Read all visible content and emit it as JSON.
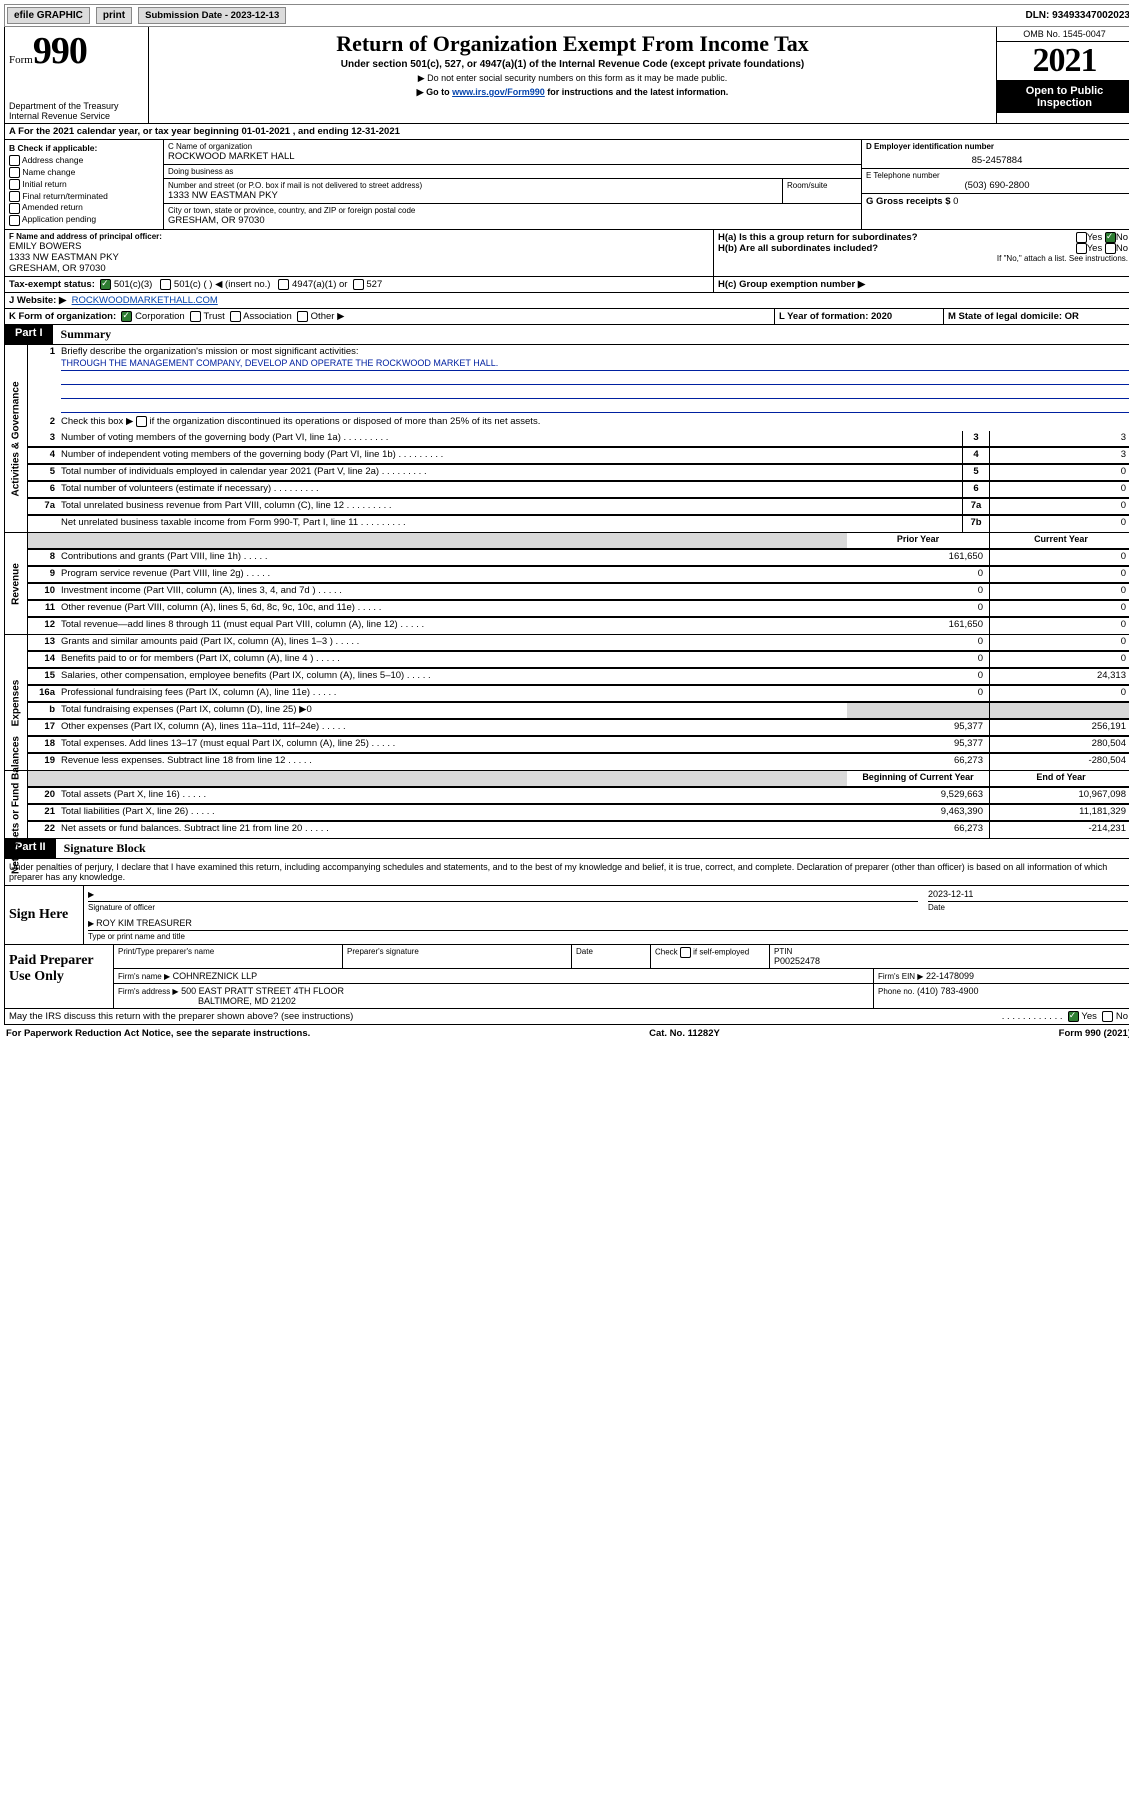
{
  "topbar": {
    "efile": "efile GRAPHIC",
    "print": "print",
    "subdate_label": "Submission Date - 2023-12-13",
    "dln": "DLN: 93493347002023"
  },
  "header": {
    "form_word": "Form",
    "form_num": "990",
    "title": "Return of Organization Exempt From Income Tax",
    "sub": "Under section 501(c), 527, or 4947(a)(1) of the Internal Revenue Code (except private foundations)",
    "note1": "▶ Do not enter social security numbers on this form as it may be made public.",
    "note2_pre": "▶ Go to ",
    "note2_link": "www.irs.gov/Form990",
    "note2_post": " for instructions and the latest information.",
    "dept": "Department of the Treasury",
    "irs": "Internal Revenue Service",
    "omb": "OMB No. 1545-0047",
    "year": "2021",
    "openpub": "Open to Public Inspection"
  },
  "A": {
    "text": "A For the 2021 calendar year, or tax year beginning 01-01-2021   , and ending 12-31-2021"
  },
  "B": {
    "label": "B Check if applicable:",
    "items": [
      "Address change",
      "Name change",
      "Initial return",
      "Final return/terminated",
      "Amended return",
      "Application pending"
    ]
  },
  "C": {
    "name_label": "C Name of organization",
    "name": "ROCKWOOD MARKET HALL",
    "dba_label": "Doing business as",
    "dba": "",
    "addr_label": "Number and street (or P.O. box if mail is not delivered to street address)",
    "room_label": "Room/suite",
    "addr": "1333 NW EASTMAN PKY",
    "city_label": "City or town, state or province, country, and ZIP or foreign postal code",
    "city": "GRESHAM, OR  97030"
  },
  "D": {
    "label": "D Employer identification number",
    "value": "85-2457884"
  },
  "E": {
    "label": "E Telephone number",
    "value": "(503) 690-2800"
  },
  "G": {
    "label": "G Gross receipts $",
    "value": "0"
  },
  "F": {
    "label": "F Name and address of principal officer:",
    "name": "EMILY BOWERS",
    "addr": "1333 NW EASTMAN PKY",
    "city": "GRESHAM, OR  97030"
  },
  "H": {
    "a_label": "H(a)  Is this a group return for subordinates?",
    "a_yes": "Yes",
    "a_no": "No",
    "b_label": "H(b)  Are all subordinates included?",
    "b_note": "If \"No,\" attach a list. See instructions.",
    "c_label": "H(c)  Group exemption number ▶"
  },
  "I": {
    "label": "Tax-exempt status:",
    "o1": "501(c)(3)",
    "o2": "501(c) (   ) ◀ (insert no.)",
    "o3": "4947(a)(1) or",
    "o4": "527"
  },
  "J": {
    "label": "J   Website: ▶",
    "value": "ROCKWOODMARKETHALL.COM"
  },
  "K": {
    "label": "K Form of organization:",
    "o1": "Corporation",
    "o2": "Trust",
    "o3": "Association",
    "o4": "Other ▶"
  },
  "L": {
    "label": "L Year of formation: 2020"
  },
  "M": {
    "label": "M State of legal domicile: OR"
  },
  "part1": {
    "label": "Part I",
    "title": "Summary",
    "q1a": "Briefly describe the organization's mission or most significant activities:",
    "q1b": "THROUGH THE MANAGEMENT COMPANY, DEVELOP AND OPERATE THE ROCKWOOD MARKET HALL.",
    "q2": "Check this box ▶         if the organization discontinued its operations or disposed of more than 25% of its net assets.",
    "rows_gov": [
      {
        "n": "3",
        "d": "Number of voting members of the governing body (Part VI, line 1a)",
        "box": "3",
        "v": "3"
      },
      {
        "n": "4",
        "d": "Number of independent voting members of the governing body (Part VI, line 1b)",
        "box": "4",
        "v": "3"
      },
      {
        "n": "5",
        "d": "Total number of individuals employed in calendar year 2021 (Part V, line 2a)",
        "box": "5",
        "v": "0"
      },
      {
        "n": "6",
        "d": "Total number of volunteers (estimate if necessary)",
        "box": "6",
        "v": "0"
      },
      {
        "n": "7a",
        "d": "Total unrelated business revenue from Part VIII, column (C), line 12",
        "box": "7a",
        "v": "0"
      },
      {
        "n": "",
        "d": "Net unrelated business taxable income from Form 990-T, Part I, line 11",
        "box": "7b",
        "v": "0"
      }
    ],
    "col_hdr_prior": "Prior Year",
    "col_hdr_curr": "Current Year",
    "rows_rev": [
      {
        "n": "8",
        "d": "Contributions and grants (Part VIII, line 1h)",
        "p": "161,650",
        "c": "0"
      },
      {
        "n": "9",
        "d": "Program service revenue (Part VIII, line 2g)",
        "p": "0",
        "c": "0"
      },
      {
        "n": "10",
        "d": "Investment income (Part VIII, column (A), lines 3, 4, and 7d )",
        "p": "0",
        "c": "0"
      },
      {
        "n": "11",
        "d": "Other revenue (Part VIII, column (A), lines 5, 6d, 8c, 9c, 10c, and 11e)",
        "p": "0",
        "c": "0"
      },
      {
        "n": "12",
        "d": "Total revenue—add lines 8 through 11 (must equal Part VIII, column (A), line 12)",
        "p": "161,650",
        "c": "0"
      }
    ],
    "rows_exp": [
      {
        "n": "13",
        "d": "Grants and similar amounts paid (Part IX, column (A), lines 1–3 )",
        "p": "0",
        "c": "0"
      },
      {
        "n": "14",
        "d": "Benefits paid to or for members (Part IX, column (A), line 4 )",
        "p": "0",
        "c": "0"
      },
      {
        "n": "15",
        "d": "Salaries, other compensation, employee benefits (Part IX, column (A), lines 5–10)",
        "p": "0",
        "c": "24,313"
      },
      {
        "n": "16a",
        "d": "Professional fundraising fees (Part IX, column (A), line 11e)",
        "p": "0",
        "c": "0"
      },
      {
        "n": "b",
        "d": "Total fundraising expenses (Part IX, column (D), line 25) ▶0",
        "p": "",
        "c": "",
        "shade": true
      },
      {
        "n": "17",
        "d": "Other expenses (Part IX, column (A), lines 11a–11d, 11f–24e)",
        "p": "95,377",
        "c": "256,191"
      },
      {
        "n": "18",
        "d": "Total expenses. Add lines 13–17 (must equal Part IX, column (A), line 25)",
        "p": "95,377",
        "c": "280,504"
      },
      {
        "n": "19",
        "d": "Revenue less expenses. Subtract line 18 from line 12",
        "p": "66,273",
        "c": "-280,504"
      }
    ],
    "col_hdr_boy": "Beginning of Current Year",
    "col_hdr_eoy": "End of Year",
    "rows_net": [
      {
        "n": "20",
        "d": "Total assets (Part X, line 16)",
        "p": "9,529,663",
        "c": "10,967,098"
      },
      {
        "n": "21",
        "d": "Total liabilities (Part X, line 26)",
        "p": "9,463,390",
        "c": "11,181,329"
      },
      {
        "n": "22",
        "d": "Net assets or fund balances. Subtract line 21 from line 20",
        "p": "66,273",
        "c": "-214,231"
      }
    ],
    "vtab_gov": "Activities & Governance",
    "vtab_rev": "Revenue",
    "vtab_exp": "Expenses",
    "vtab_net": "Net Assets or Fund Balances"
  },
  "part2": {
    "label": "Part II",
    "title": "Signature Block",
    "decl": "Under penalties of perjury, I declare that I have examined this return, including accompanying schedules and statements, and to the best of my knowledge and belief, it is true, correct, and complete. Declaration of preparer (other than officer) is based on all information of which preparer has any knowledge."
  },
  "sign": {
    "left": "Sign Here",
    "sig_label": "Signature of officer",
    "date_label": "Date",
    "date": "2023-12-11",
    "name": "ROY KIM  TREASURER",
    "name_label": "Type or print name and title"
  },
  "prep": {
    "left": "Paid Preparer Use Only",
    "c1": "Print/Type preparer's name",
    "c2": "Preparer's signature",
    "c3": "Date",
    "c4_label": "Check          if self-employed",
    "c5_label": "PTIN",
    "c5": "P00252478",
    "firm_label": "Firm's name    ▶",
    "firm": "COHNREZNICK LLP",
    "ein_label": "Firm's EIN ▶",
    "ein": "22-1478099",
    "addr_label": "Firm's address ▶",
    "addr1": "500 EAST PRATT STREET 4TH FLOOR",
    "addr2": "BALTIMORE, MD  21202",
    "phone_label": "Phone no.",
    "phone": "(410) 783-4900"
  },
  "discuss": {
    "q": "May the IRS discuss this return with the preparer shown above? (see instructions)",
    "yes": "Yes",
    "no": "No"
  },
  "footer": {
    "left": "For Paperwork Reduction Act Notice, see the separate instructions.",
    "mid": "Cat. No. 11282Y",
    "right": "Form 990 (2021)"
  }
}
